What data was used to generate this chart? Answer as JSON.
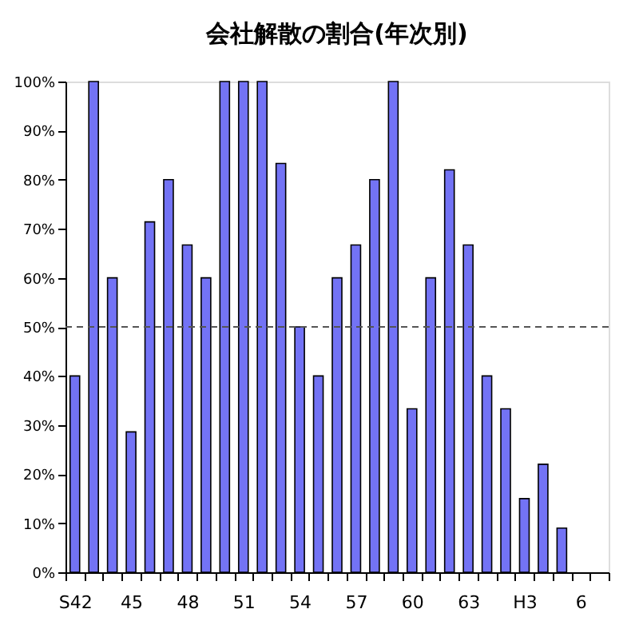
{
  "chart_data": {
    "type": "bar",
    "title": "会社解散の割合(年次別)",
    "categories": [
      "S42",
      null,
      null,
      "45",
      null,
      null,
      "48",
      null,
      null,
      "51",
      null,
      null,
      "54",
      null,
      null,
      "57",
      null,
      null,
      "60",
      null,
      null,
      "63",
      null,
      null,
      "H3",
      null,
      null,
      "6",
      null
    ],
    "values": [
      40,
      100,
      60,
      28.6,
      71.4,
      80,
      66.7,
      60,
      100,
      100,
      100,
      83.3,
      50,
      40,
      60,
      66.7,
      80,
      100,
      33.3,
      60,
      82,
      66.7,
      40,
      33.3,
      15,
      22,
      9,
      null,
      null
    ],
    "color": "#7373f5",
    "ylim": [
      0,
      100
    ],
    "yticks": [
      {
        "value": 0,
        "label": "0%"
      },
      {
        "value": 10,
        "label": "10%"
      },
      {
        "value": 20,
        "label": "20%"
      },
      {
        "value": 30,
        "label": "30%"
      },
      {
        "value": 40,
        "label": "40%"
      },
      {
        "value": 50,
        "label": "50%"
      },
      {
        "value": 60,
        "label": "60%"
      },
      {
        "value": 70,
        "label": "70%"
      },
      {
        "value": 80,
        "label": "80%"
      },
      {
        "value": 90,
        "label": "90%"
      },
      {
        "value": 100,
        "label": "100%"
      }
    ],
    "ref_lines": [
      {
        "axis": "y",
        "value": 50,
        "color": "#555555",
        "line_style": "dashed"
      }
    ],
    "grid": false
  }
}
